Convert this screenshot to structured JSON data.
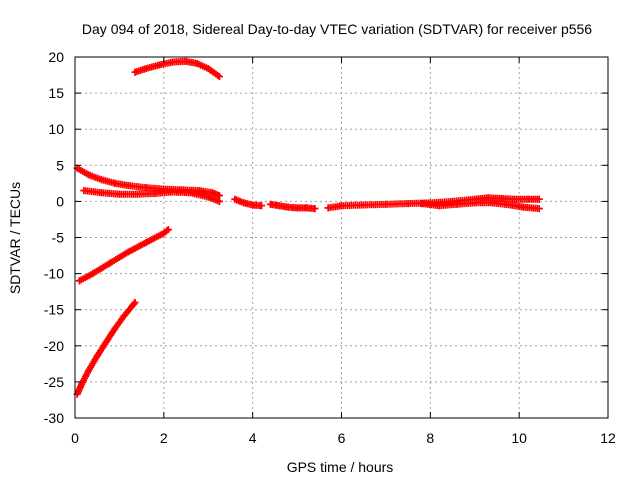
{
  "chart_data": {
    "type": "scatter",
    "title": "Day 094 of 2018, Sidereal Day-to-day VTEC variation (SDTVAR) for receiver p556",
    "xlabel": "GPS time / hours",
    "ylabel": "SDTVAR / TECUs",
    "xlim": [
      0,
      12
    ],
    "ylim": [
      -30,
      20
    ],
    "x_ticks": [
      0,
      2,
      4,
      6,
      8,
      10,
      12
    ],
    "y_ticks": [
      -30,
      -25,
      -20,
      -15,
      -10,
      -5,
      0,
      5,
      10,
      15,
      20
    ],
    "grid": true,
    "legend": "none",
    "marker": "plus",
    "color": "#ff0000",
    "series": [
      {
        "x": [
          1.35,
          1.6,
          1.9,
          2.2,
          2.5,
          2.75,
          3.0,
          3.25
        ],
        "y": [
          17.9,
          18.4,
          18.9,
          19.3,
          19.4,
          19.1,
          18.4,
          17.3
        ]
      },
      {
        "x": [
          0.05,
          0.3,
          0.6,
          0.9,
          1.2,
          1.6,
          2.0,
          2.4,
          2.8,
          3.1,
          3.25
        ],
        "y": [
          4.6,
          3.7,
          3.0,
          2.5,
          2.2,
          1.9,
          1.7,
          1.6,
          1.5,
          1.2,
          0.8
        ]
      },
      {
        "x": [
          0.2,
          0.6,
          1.0,
          1.4,
          1.8,
          2.2,
          2.6,
          3.0,
          3.25
        ],
        "y": [
          1.5,
          1.2,
          1.0,
          1.0,
          1.1,
          1.3,
          1.2,
          0.6,
          0.0
        ]
      },
      {
        "x": [
          3.6,
          3.8,
          4.0,
          4.2
        ],
        "y": [
          0.3,
          -0.2,
          -0.5,
          -0.6
        ]
      },
      {
        "x": [
          4.4,
          4.6,
          4.8,
          5.0,
          5.2,
          5.4
        ],
        "y": [
          -0.4,
          -0.6,
          -0.8,
          -0.9,
          -0.9,
          -1.0
        ]
      },
      {
        "x": [
          5.7,
          6.0,
          6.5,
          7.0,
          7.5,
          8.0,
          8.5,
          9.0,
          9.3,
          9.6,
          9.9,
          10.2,
          10.45
        ],
        "y": [
          -0.9,
          -0.6,
          -0.5,
          -0.4,
          -0.3,
          -0.2,
          0.0,
          0.3,
          0.5,
          0.4,
          0.3,
          0.3,
          0.3
        ]
      },
      {
        "x": [
          7.8,
          8.2,
          8.6,
          9.0,
          9.4,
          9.8,
          10.1,
          10.45
        ],
        "y": [
          -0.3,
          -0.6,
          -0.4,
          -0.2,
          -0.2,
          -0.5,
          -0.8,
          -1.0
        ]
      },
      {
        "x": [
          0.1,
          0.4,
          0.8,
          1.2,
          1.6,
          2.0,
          2.1
        ],
        "y": [
          -11.0,
          -10.0,
          -8.5,
          -7.0,
          -5.7,
          -4.4,
          -3.9
        ]
      },
      {
        "x": [
          0.05,
          0.15,
          0.3,
          0.5,
          0.7,
          0.9,
          1.1,
          1.3,
          1.35
        ],
        "y": [
          -26.7,
          -25.3,
          -23.5,
          -21.4,
          -19.5,
          -17.6,
          -15.9,
          -14.4,
          -14.0
        ]
      }
    ]
  }
}
